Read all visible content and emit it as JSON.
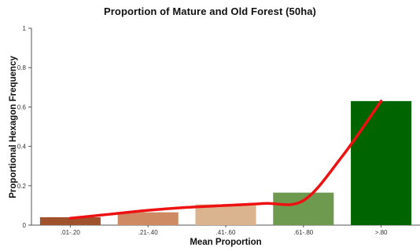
{
  "chart_data": {
    "type": "bar",
    "title": "Proportion of Mature and Old Forest (50ha)",
    "xlabel": "Mean Proportion",
    "ylabel": "Proportional Hexagon Frequency",
    "categories": [
      ".01-.20",
      ".21-.40",
      ".41-.60",
      ".61-.80",
      ">.80"
    ],
    "values": [
      0.04,
      0.065,
      0.105,
      0.165,
      0.63
    ],
    "bar_colors": [
      "#a0522d",
      "#cd8a63",
      "#d9b48f",
      "#6e9a50",
      "#006400"
    ],
    "ylim": [
      0,
      1
    ],
    "y_ticks": [
      "0",
      "0.2",
      "0.4",
      "0.6",
      "0.8",
      "1"
    ],
    "grid": false,
    "trend_line": {
      "color": "#ee1111",
      "x": [
        0,
        0.5,
        1,
        1.5,
        2,
        2.5,
        3,
        3.5,
        4
      ],
      "y": [
        0.035,
        0.055,
        0.075,
        0.09,
        0.1,
        0.11,
        0.125,
        0.35,
        0.63
      ]
    }
  }
}
